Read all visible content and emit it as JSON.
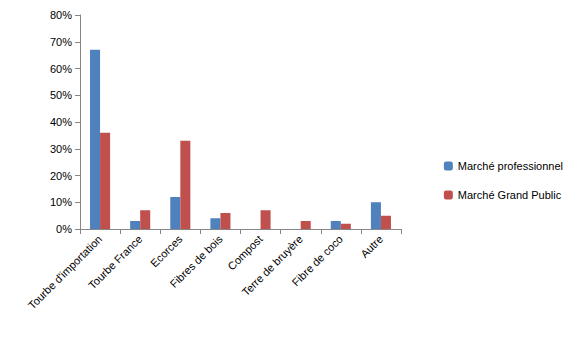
{
  "chart_data": {
    "type": "bar",
    "categories": [
      "Tourbe d'importation",
      "Tourbe France",
      "Ecorces",
      "Fibres de bois",
      "Compost",
      "Terre de bruyère",
      "Fibre de coco",
      "Autre"
    ],
    "series": [
      {
        "name": "Marché professionnel",
        "color": "#4f81bd",
        "values": [
          67,
          3,
          12,
          4,
          0,
          0,
          3,
          10
        ]
      },
      {
        "name": "Marché Grand Public",
        "color": "#c0504d",
        "values": [
          36,
          7,
          33,
          6,
          7,
          3,
          2,
          5
        ]
      }
    ],
    "ylim": [
      0,
      80
    ],
    "yticks": [
      {
        "value": 0,
        "label": "0%"
      },
      {
        "value": 10,
        "label": "10%"
      },
      {
        "value": 20,
        "label": "20%"
      },
      {
        "value": 30,
        "label": "30%"
      },
      {
        "value": 40,
        "label": "40%"
      },
      {
        "value": 50,
        "label": "50%"
      },
      {
        "value": 60,
        "label": "60%"
      },
      {
        "value": 70,
        "label": "70%"
      },
      {
        "value": 80,
        "label": "80%"
      }
    ],
    "grid": false,
    "legend": "right"
  }
}
